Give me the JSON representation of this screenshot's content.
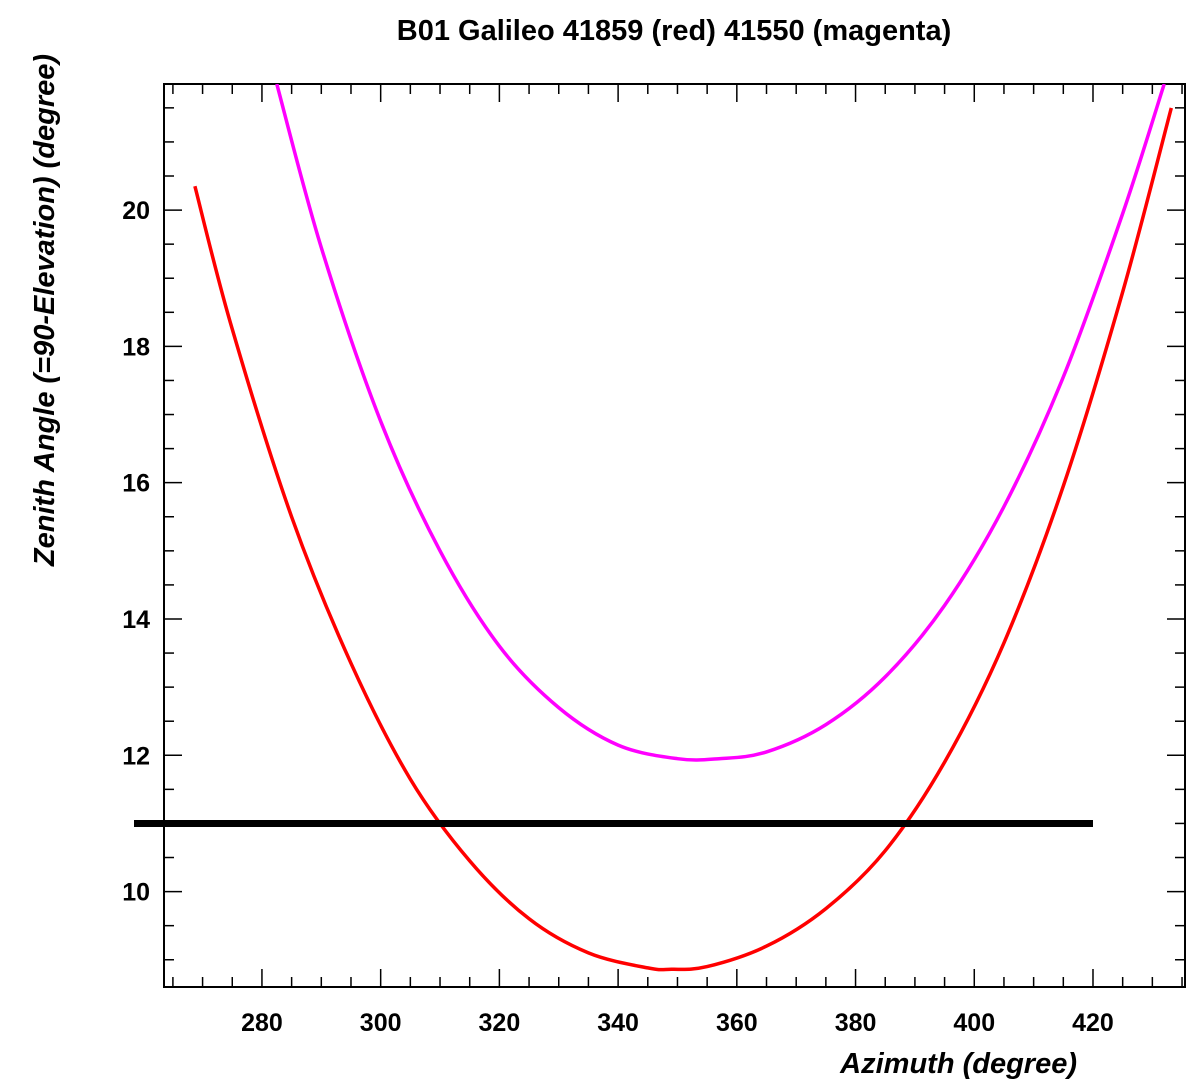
{
  "chart_data": {
    "type": "line",
    "title": "B01  Galileo 41859 (red) 41550 (magenta)",
    "xlabel": "Azimuth (degree)",
    "ylabel": "Zenith Angle (=90-Elevation) (degree)",
    "xlim": [
      263.5,
      435.5
    ],
    "ylim": [
      8.6,
      21.85
    ],
    "x_ticks": [
      280,
      300,
      320,
      340,
      360,
      380,
      400,
      420
    ],
    "x_tick_labels": [
      "280",
      "300",
      "320",
      "340",
      "360",
      "380",
      "400",
      "420"
    ],
    "y_ticks": [
      10,
      12,
      14,
      16,
      18,
      20
    ],
    "y_tick_labels": [
      "10",
      "12",
      "14",
      "16",
      "18",
      "20"
    ],
    "grid": false,
    "legend": "none",
    "series": [
      {
        "name": "41859 (red)",
        "color": "#ff0000",
        "x": [
          268.7,
          275,
          285,
          295,
          305,
          315,
          325,
          335,
          345,
          349,
          355,
          365,
          375,
          385,
          395,
          405,
          415,
          425,
          433.2
        ],
        "y": [
          20.35,
          18.25,
          15.5,
          13.35,
          11.65,
          10.45,
          9.6,
          9.1,
          8.88,
          8.86,
          8.9,
          9.2,
          9.75,
          10.6,
          11.9,
          13.65,
          15.95,
          18.8,
          21.5
        ]
      },
      {
        "name": "41550 (magenta)",
        "color": "#ff00ff",
        "x": [
          282.5,
          290,
          300,
          310,
          320,
          330,
          340,
          350,
          357,
          365,
          375,
          385,
          395,
          405,
          415,
          425,
          432
        ],
        "y": [
          21.85,
          19.45,
          16.9,
          15.0,
          13.6,
          12.7,
          12.15,
          11.95,
          11.95,
          12.05,
          12.45,
          13.15,
          14.2,
          15.65,
          17.55,
          19.95,
          21.85
        ]
      }
    ],
    "reference_line": {
      "y": 11.0,
      "x_range": [
        262,
        420
      ],
      "color": "#000000"
    }
  }
}
